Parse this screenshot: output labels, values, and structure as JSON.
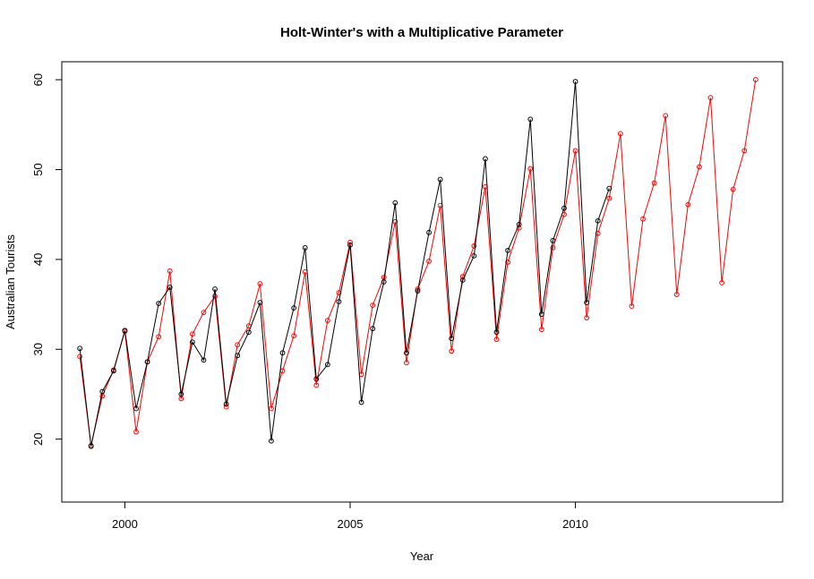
{
  "chart_data": {
    "type": "line",
    "title": "Holt-Winter's with a Multiplicative Parameter",
    "xlabel": "Year",
    "ylabel": "Australian Tourists",
    "xlim": [
      1998.6,
      2014.6
    ],
    "ylim": [
      13.0,
      62.0
    ],
    "x_ticks": [
      2000,
      2005,
      2010
    ],
    "y_ticks": [
      20,
      30,
      40,
      50,
      60
    ],
    "grid": false,
    "legend": "none",
    "colors": {
      "observed": "#000000",
      "fitted": "#ff0000"
    },
    "x_start": 1999.0,
    "x_step": 0.25,
    "series": [
      {
        "values": [
          30.1,
          19.2,
          25.3,
          27.6,
          32.1,
          23.4,
          28.6,
          35.1,
          36.9,
          25.0,
          30.8,
          28.8,
          36.7,
          23.9,
          29.3,
          31.9,
          35.2,
          19.8,
          29.6,
          34.6,
          41.3,
          26.7,
          28.3,
          35.3,
          41.6,
          24.1,
          32.3,
          37.5,
          46.3,
          29.6,
          36.5,
          43.0,
          48.9,
          31.2,
          37.7,
          40.4,
          51.2,
          31.9,
          41.0,
          43.9,
          55.6,
          33.9,
          42.1,
          45.7,
          59.8,
          35.2,
          44.3,
          47.9
        ]
      },
      {
        "values": [
          29.2,
          19.3,
          24.8,
          27.7,
          32.0,
          20.8,
          28.6,
          31.4,
          38.7,
          24.5,
          31.7,
          34.1,
          35.9,
          23.6,
          30.5,
          32.6,
          37.3,
          23.4,
          27.6,
          31.5,
          38.6,
          26.0,
          33.2,
          36.3,
          41.9,
          27.2,
          34.9,
          38.0,
          44.2,
          28.5,
          36.7,
          39.8,
          46.0,
          29.8,
          38.1,
          41.5,
          48.1,
          31.1,
          39.7,
          43.5,
          50.1,
          32.2,
          41.3,
          45.0,
          52.1,
          33.5,
          42.9,
          46.8,
          54.0,
          34.8,
          44.5,
          48.5,
          56.0,
          36.1,
          46.1,
          50.3,
          58.0,
          37.4,
          47.8,
          52.1,
          60.0
        ]
      }
    ]
  }
}
